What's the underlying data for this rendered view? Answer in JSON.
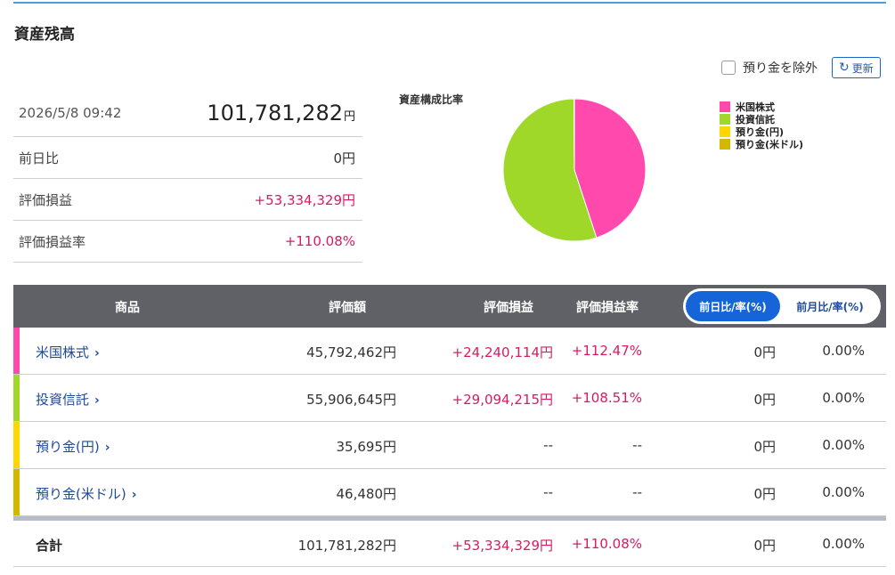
{
  "title": "資産残高",
  "controls": {
    "exclude_label": "預り金を除外",
    "refresh_label": "更新"
  },
  "summary": {
    "datetime": "2026/5/8 09:42",
    "total": "101,781,282",
    "yen": "円",
    "rows": [
      {
        "label": "前日比",
        "value": "0円"
      },
      {
        "label": "評価損益",
        "value": "+53,334,329円"
      },
      {
        "label": "評価損益率",
        "value": "+110.08%"
      }
    ]
  },
  "pie": {
    "title": "資産構成比率",
    "slices": [
      {
        "label": "米国株式",
        "value": 45792462,
        "color": "#ff49ad"
      },
      {
        "label": "投資信託",
        "value": 55906645,
        "color": "#a0d82a"
      },
      {
        "label": "預り金(円)",
        "value": 35695,
        "color": "#ffd600"
      },
      {
        "label": "預り金(米ドル)",
        "value": 46480,
        "color": "#d4b800"
      }
    ]
  },
  "table": {
    "headers": {
      "product": "商品",
      "valuation": "評価額",
      "pl": "評価損益",
      "pl_rate": "評価損益率"
    },
    "toggle": {
      "day": "前日比/率(%)",
      "month": "前月比/率(%)"
    },
    "rows": [
      {
        "name": "米国株式",
        "color": "#ff49ad",
        "valuation": "45,792,462円",
        "pl": "+24,240,114円",
        "pl_rate": "+112.47%",
        "diff": "0円",
        "diff_rate": "0.00%"
      },
      {
        "name": "投資信託",
        "color": "#a0d82a",
        "valuation": "55,906,645円",
        "pl": "+29,094,215円",
        "pl_rate": "+108.51%",
        "diff": "0円",
        "diff_rate": "0.00%"
      },
      {
        "name": "預り金(円)",
        "color": "#ffd600",
        "valuation": "35,695円",
        "pl": "--",
        "pl_rate": "--",
        "diff": "0円",
        "diff_rate": "0.00%"
      },
      {
        "name": "預り金(米ドル)",
        "color": "#d4b800",
        "valuation": "46,480円",
        "pl": "--",
        "pl_rate": "--",
        "diff": "0円",
        "diff_rate": "0.00%"
      }
    ],
    "total": {
      "name": "合計",
      "valuation": "101,781,282円",
      "pl": "+53,334,329円",
      "pl_rate": "+110.08%",
      "diff": "0円",
      "diff_rate": "0.00%"
    }
  }
}
